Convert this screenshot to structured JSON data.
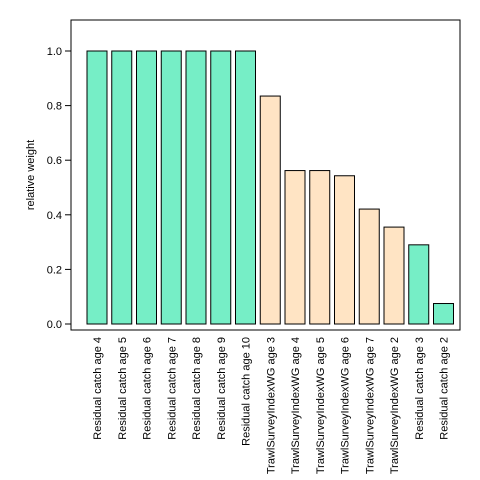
{
  "chart_data": {
    "type": "bar",
    "title": "",
    "xlabel": "",
    "ylabel": "relative weight",
    "ylim": [
      0,
      1.1
    ],
    "yticks": [
      "0.0",
      "0.2",
      "0.4",
      "0.6",
      "0.8",
      "1.0"
    ],
    "grid": false,
    "legend": "none",
    "categories": [
      "Residual catch age 4",
      "Residual catch age 5",
      "Residual catch age 6",
      "Residual catch age 7",
      "Residual catch age 8",
      "Residual catch age 9",
      "Residual catch age 10",
      "TrawlSurveyIndexWG age 3",
      "TrawlSurveyIndexWG age 4",
      "TrawlSurveyIndexWG age 5",
      "TrawlSurveyIndexWG age 6",
      "TrawlSurveyIndexWG age 7",
      "TrawlSurveyIndexWG age 2",
      "Residual catch age 3",
      "Residual catch age 2"
    ],
    "values": [
      1.0,
      1.0,
      1.0,
      1.0,
      1.0,
      1.0,
      1.0,
      0.835,
      0.562,
      0.562,
      0.543,
      0.421,
      0.355,
      0.29,
      0.075
    ],
    "bar_colors": [
      "#76eec6",
      "#76eec6",
      "#76eec6",
      "#76eec6",
      "#76eec6",
      "#76eec6",
      "#76eec6",
      "#ffe4c4",
      "#ffe4c4",
      "#ffe4c4",
      "#ffe4c4",
      "#ffe4c4",
      "#ffe4c4",
      "#76eec6",
      "#76eec6"
    ]
  }
}
